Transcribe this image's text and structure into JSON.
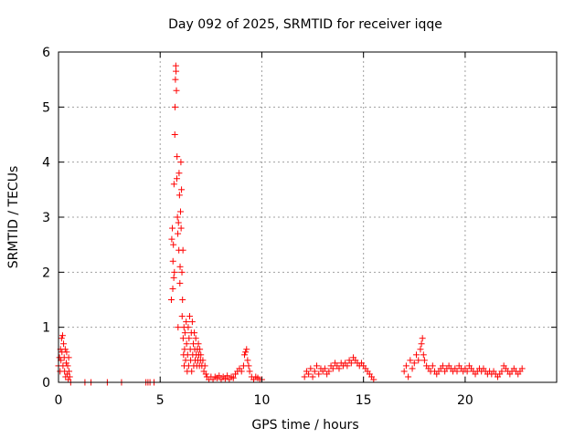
{
  "chart_data": {
    "type": "scatter",
    "title": "Day 092 of 2025, SRMTID for receiver iqqe",
    "xlabel": "GPS time / hours",
    "ylabel": "SRMTID / TECUs",
    "xlim": [
      0,
      24.5
    ],
    "ylim": [
      0,
      6
    ],
    "x_ticks": [
      0,
      5,
      10,
      15,
      20
    ],
    "y_ticks": [
      0,
      1,
      2,
      3,
      4,
      5,
      6
    ],
    "grid": true,
    "marker": "plus",
    "color": "#ff0000",
    "series": [
      {
        "name": "SRMTID",
        "points": [
          [
            0.0,
            0.3
          ],
          [
            0.05,
            0.45
          ],
          [
            0.08,
            0.2
          ],
          [
            0.1,
            0.6
          ],
          [
            0.12,
            0.4
          ],
          [
            0.15,
            0.8
          ],
          [
            0.17,
            0.55
          ],
          [
            0.2,
            0.85
          ],
          [
            0.22,
            0.3
          ],
          [
            0.25,
            0.7
          ],
          [
            0.28,
            0.45
          ],
          [
            0.3,
            0.2
          ],
          [
            0.33,
            0.6
          ],
          [
            0.35,
            0.1
          ],
          [
            0.38,
            0.35
          ],
          [
            0.4,
            0.55
          ],
          [
            0.43,
            0.15
          ],
          [
            0.45,
            0.3
          ],
          [
            0.48,
            0.05
          ],
          [
            0.5,
            0.45
          ],
          [
            0.52,
            0.2
          ],
          [
            0.55,
            0.1
          ],
          [
            0.6,
            0.0
          ],
          [
            1.3,
            0.0
          ],
          [
            1.6,
            0.0
          ],
          [
            2.4,
            0.0
          ],
          [
            3.1,
            0.0
          ],
          [
            4.3,
            0.0
          ],
          [
            4.4,
            0.0
          ],
          [
            4.5,
            0.0
          ],
          [
            4.7,
            0.0
          ],
          [
            5.55,
            1.5
          ],
          [
            5.57,
            2.6
          ],
          [
            5.6,
            2.8
          ],
          [
            5.62,
            1.7
          ],
          [
            5.63,
            2.2
          ],
          [
            5.65,
            2.5
          ],
          [
            5.67,
            1.9
          ],
          [
            5.68,
            3.6
          ],
          [
            5.7,
            2.0
          ],
          [
            5.72,
            4.5
          ],
          [
            5.73,
            5.0
          ],
          [
            5.75,
            5.5
          ],
          [
            5.77,
            5.75
          ],
          [
            5.78,
            5.65
          ],
          [
            5.8,
            5.3
          ],
          [
            5.82,
            3.7
          ],
          [
            5.83,
            4.1
          ],
          [
            5.85,
            3.0
          ],
          [
            5.87,
            2.7
          ],
          [
            5.88,
            1.0
          ],
          [
            5.9,
            2.9
          ],
          [
            5.92,
            2.4
          ],
          [
            5.93,
            3.8
          ],
          [
            5.95,
            3.4
          ],
          [
            5.97,
            1.8
          ],
          [
            5.98,
            2.1
          ],
          [
            6.0,
            3.1
          ],
          [
            6.02,
            4.0
          ],
          [
            6.03,
            2.8
          ],
          [
            6.05,
            3.5
          ],
          [
            6.07,
            2.0
          ],
          [
            6.08,
            1.2
          ],
          [
            6.1,
            1.5
          ],
          [
            6.12,
            2.4
          ],
          [
            6.13,
            0.8
          ],
          [
            6.15,
            0.5
          ],
          [
            6.17,
            1.0
          ],
          [
            6.18,
            0.3
          ],
          [
            6.2,
            0.6
          ],
          [
            6.22,
            0.9
          ],
          [
            6.25,
            0.4
          ],
          [
            6.28,
            1.1
          ],
          [
            6.3,
            0.7
          ],
          [
            6.33,
            0.2
          ],
          [
            6.35,
            0.5
          ],
          [
            6.38,
            1.0
          ],
          [
            6.4,
            0.3
          ],
          [
            6.42,
            0.8
          ],
          [
            6.45,
            1.2
          ],
          [
            6.48,
            0.6
          ],
          [
            6.5,
            0.4
          ],
          [
            6.53,
            0.9
          ],
          [
            6.55,
            0.2
          ],
          [
            6.58,
            1.1
          ],
          [
            6.6,
            0.5
          ],
          [
            6.63,
            0.7
          ],
          [
            6.65,
            0.3
          ],
          [
            6.68,
            0.9
          ],
          [
            6.7,
            0.6
          ],
          [
            6.72,
            0.4
          ],
          [
            6.75,
            0.8
          ],
          [
            6.78,
            0.5
          ],
          [
            6.8,
            0.3
          ],
          [
            6.83,
            0.6
          ],
          [
            6.85,
            0.4
          ],
          [
            6.88,
            0.7
          ],
          [
            6.9,
            0.5
          ],
          [
            6.93,
            0.3
          ],
          [
            6.95,
            0.6
          ],
          [
            6.98,
            0.4
          ],
          [
            7.0,
            0.5
          ],
          [
            7.05,
            0.3
          ],
          [
            7.1,
            0.4
          ],
          [
            7.15,
            0.2
          ],
          [
            7.2,
            0.3
          ],
          [
            7.25,
            0.15
          ],
          [
            7.3,
            0.1
          ],
          [
            7.4,
            0.05
          ],
          [
            7.5,
            0.1
          ],
          [
            7.6,
            0.05
          ],
          [
            7.7,
            0.1
          ],
          [
            7.8,
            0.08
          ],
          [
            7.9,
            0.12
          ],
          [
            8.0,
            0.05
          ],
          [
            8.1,
            0.1
          ],
          [
            8.2,
            0.07
          ],
          [
            8.3,
            0.12
          ],
          [
            8.4,
            0.05
          ],
          [
            8.5,
            0.1
          ],
          [
            8.6,
            0.08
          ],
          [
            8.7,
            0.15
          ],
          [
            8.8,
            0.2
          ],
          [
            8.9,
            0.25
          ],
          [
            9.0,
            0.2
          ],
          [
            9.1,
            0.3
          ],
          [
            9.15,
            0.5
          ],
          [
            9.2,
            0.55
          ],
          [
            9.25,
            0.6
          ],
          [
            9.3,
            0.4
          ],
          [
            9.35,
            0.3
          ],
          [
            9.4,
            0.2
          ],
          [
            9.5,
            0.1
          ],
          [
            9.6,
            0.05
          ],
          [
            9.7,
            0.1
          ],
          [
            9.8,
            0.08
          ],
          [
            9.9,
            0.05
          ],
          [
            10.0,
            0.05
          ],
          [
            12.1,
            0.1
          ],
          [
            12.2,
            0.2
          ],
          [
            12.3,
            0.15
          ],
          [
            12.4,
            0.25
          ],
          [
            12.5,
            0.1
          ],
          [
            12.6,
            0.2
          ],
          [
            12.7,
            0.3
          ],
          [
            12.8,
            0.15
          ],
          [
            12.9,
            0.25
          ],
          [
            13.0,
            0.2
          ],
          [
            13.1,
            0.25
          ],
          [
            13.2,
            0.15
          ],
          [
            13.3,
            0.2
          ],
          [
            13.4,
            0.3
          ],
          [
            13.5,
            0.25
          ],
          [
            13.6,
            0.35
          ],
          [
            13.7,
            0.3
          ],
          [
            13.8,
            0.25
          ],
          [
            13.9,
            0.35
          ],
          [
            14.0,
            0.3
          ],
          [
            14.1,
            0.35
          ],
          [
            14.2,
            0.3
          ],
          [
            14.3,
            0.4
          ],
          [
            14.4,
            0.35
          ],
          [
            14.5,
            0.45
          ],
          [
            14.6,
            0.4
          ],
          [
            14.7,
            0.35
          ],
          [
            14.8,
            0.3
          ],
          [
            14.9,
            0.35
          ],
          [
            15.0,
            0.3
          ],
          [
            15.1,
            0.25
          ],
          [
            15.2,
            0.2
          ],
          [
            15.3,
            0.15
          ],
          [
            15.4,
            0.1
          ],
          [
            15.5,
            0.05
          ],
          [
            17.0,
            0.2
          ],
          [
            17.1,
            0.3
          ],
          [
            17.2,
            0.1
          ],
          [
            17.3,
            0.4
          ],
          [
            17.4,
            0.25
          ],
          [
            17.5,
            0.35
          ],
          [
            17.6,
            0.5
          ],
          [
            17.7,
            0.4
          ],
          [
            17.8,
            0.6
          ],
          [
            17.85,
            0.7
          ],
          [
            17.9,
            0.8
          ],
          [
            17.95,
            0.5
          ],
          [
            18.0,
            0.4
          ],
          [
            18.1,
            0.3
          ],
          [
            18.2,
            0.25
          ],
          [
            18.3,
            0.2
          ],
          [
            18.4,
            0.3
          ],
          [
            18.5,
            0.2
          ],
          [
            18.6,
            0.15
          ],
          [
            18.7,
            0.2
          ],
          [
            18.8,
            0.25
          ],
          [
            18.9,
            0.3
          ],
          [
            19.0,
            0.2
          ],
          [
            19.1,
            0.25
          ],
          [
            19.2,
            0.3
          ],
          [
            19.3,
            0.25
          ],
          [
            19.4,
            0.2
          ],
          [
            19.5,
            0.25
          ],
          [
            19.6,
            0.2
          ],
          [
            19.7,
            0.3
          ],
          [
            19.8,
            0.25
          ],
          [
            19.9,
            0.2
          ],
          [
            20.0,
            0.25
          ],
          [
            20.1,
            0.2
          ],
          [
            20.2,
            0.3
          ],
          [
            20.3,
            0.25
          ],
          [
            20.4,
            0.2
          ],
          [
            20.5,
            0.15
          ],
          [
            20.6,
            0.2
          ],
          [
            20.7,
            0.25
          ],
          [
            20.8,
            0.2
          ],
          [
            20.9,
            0.25
          ],
          [
            21.0,
            0.2
          ],
          [
            21.1,
            0.15
          ],
          [
            21.2,
            0.2
          ],
          [
            21.3,
            0.15
          ],
          [
            21.4,
            0.2
          ],
          [
            21.5,
            0.15
          ],
          [
            21.6,
            0.1
          ],
          [
            21.7,
            0.15
          ],
          [
            21.8,
            0.2
          ],
          [
            21.9,
            0.3
          ],
          [
            22.0,
            0.25
          ],
          [
            22.1,
            0.2
          ],
          [
            22.2,
            0.15
          ],
          [
            22.3,
            0.2
          ],
          [
            22.4,
            0.25
          ],
          [
            22.5,
            0.2
          ],
          [
            22.6,
            0.15
          ],
          [
            22.7,
            0.2
          ],
          [
            22.8,
            0.25
          ]
        ]
      }
    ]
  }
}
